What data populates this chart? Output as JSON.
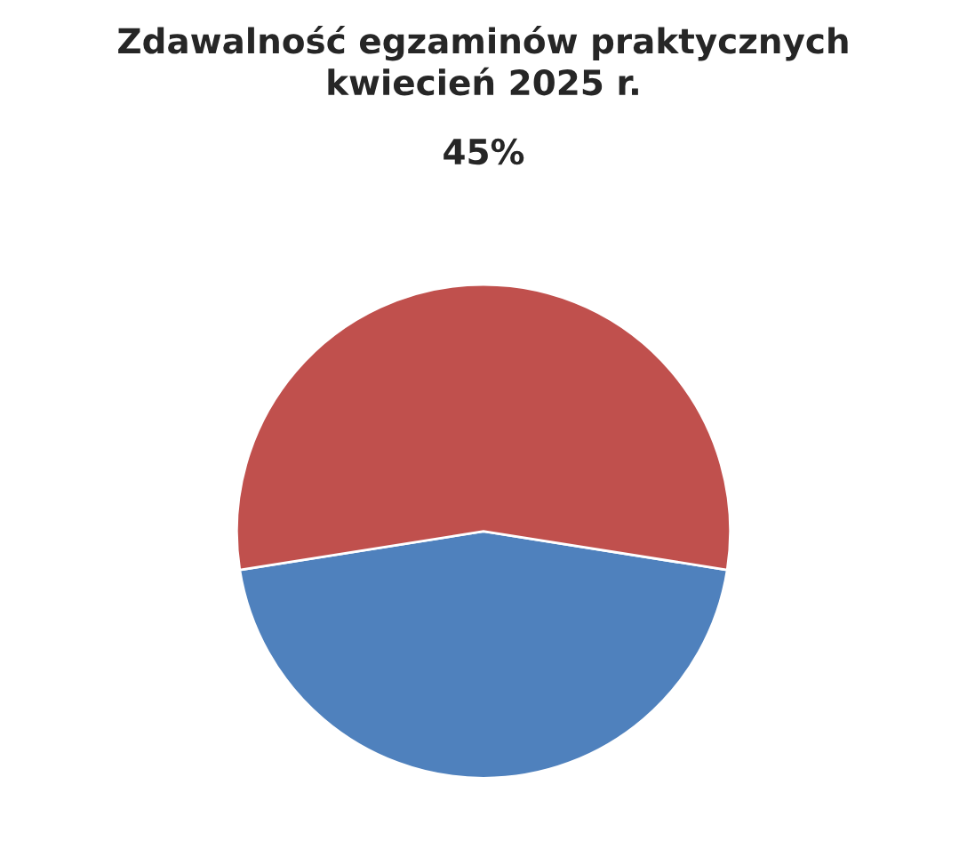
{
  "chart_data": {
    "type": "pie",
    "title": "Zdawalność egzaminów praktycznych\nkwiecień 2025 r.",
    "subtitle": "45%",
    "categories": [
      null,
      null
    ],
    "values": [
      45,
      55
    ],
    "colors": [
      "#4f81bd",
      "#c0504d"
    ],
    "legend": false
  }
}
